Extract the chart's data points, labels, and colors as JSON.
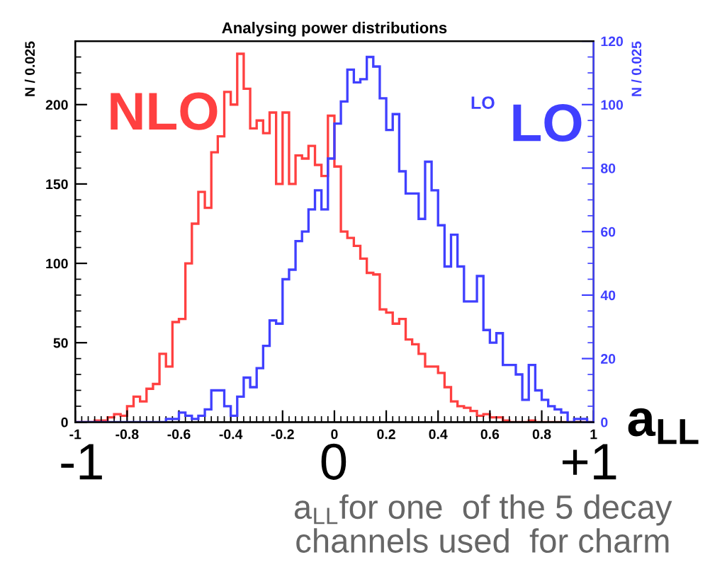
{
  "chart_data": {
    "type": "histogram",
    "title": "Analysing power distributions",
    "ylabel": "N / 0.025",
    "y2label": "N / 0.025",
    "bins": [
      -1,
      -0.975,
      -0.95,
      -0.925,
      -0.9,
      -0.875,
      -0.85,
      -0.825,
      -0.8,
      -0.775,
      -0.75,
      -0.725,
      -0.7,
      -0.675,
      -0.65,
      -0.625,
      -0.6,
      -0.575,
      -0.55,
      -0.525,
      -0.5,
      -0.475,
      -0.45,
      -0.425,
      -0.4,
      -0.375,
      -0.35,
      -0.325,
      -0.3,
      -0.275,
      -0.25,
      -0.225,
      -0.2,
      -0.175,
      -0.15,
      -0.125,
      -0.1,
      -0.075,
      -0.05,
      -0.025,
      0,
      0.025,
      0.05,
      0.075,
      0.1,
      0.125,
      0.15,
      0.175,
      0.2,
      0.225,
      0.25,
      0.275,
      0.3,
      0.325,
      0.35,
      0.375,
      0.4,
      0.425,
      0.45,
      0.475,
      0.5,
      0.525,
      0.55,
      0.575,
      0.6,
      0.625,
      0.65,
      0.675,
      0.7,
      0.725,
      0.75,
      0.775,
      0.8,
      0.825,
      0.85,
      0.875,
      0.9,
      0.925,
      0.95,
      0.975,
      1
    ],
    "series": [
      {
        "name": "NLO",
        "color": "#ff4040",
        "values": [
          0,
          0,
          0,
          1,
          1,
          3,
          5,
          4,
          10,
          16,
          13,
          21,
          24,
          43,
          35,
          63,
          65,
          100,
          125,
          145,
          135,
          170,
          180,
          208,
          200,
          232,
          210,
          185,
          190,
          182,
          195,
          150,
          195,
          150,
          168,
          166,
          174,
          162,
          155,
          193,
          161,
          120,
          116,
          111,
          103,
          94,
          93,
          71,
          69,
          62,
          65,
          52,
          49,
          43,
          35,
          35,
          31,
          22,
          13,
          10,
          9,
          7,
          4,
          5,
          3,
          3,
          1,
          0,
          0,
          0,
          1,
          0,
          0,
          0,
          0,
          0,
          0,
          0,
          0,
          0
        ]
      },
      {
        "name": "LO",
        "color": "#4040ff",
        "axis": "y2",
        "values": [
          0,
          0,
          0,
          0,
          0,
          0,
          0,
          0,
          0,
          0,
          0,
          0,
          0,
          0,
          1,
          1,
          3,
          2,
          1,
          2,
          4,
          10,
          10,
          5,
          2,
          8,
          14,
          11,
          17,
          24,
          32,
          31,
          45,
          48,
          57,
          60,
          67,
          73,
          67,
          83,
          94,
          101,
          111,
          107,
          108,
          115,
          112,
          102,
          92,
          97,
          79,
          72,
          72,
          64,
          82,
          73,
          62,
          49,
          59,
          49,
          38,
          38,
          46,
          29,
          25,
          28,
          18,
          18,
          15,
          7,
          18,
          10,
          7,
          5,
          4,
          3,
          0,
          1,
          1,
          0
        ]
      }
    ],
    "xlim": [
      -1,
      1
    ],
    "xticks": [
      -1,
      -0.8,
      -0.6,
      -0.4,
      -0.2,
      0,
      0.2,
      0.4,
      0.6,
      0.8,
      1
    ],
    "ylim": [
      0,
      240
    ],
    "yticks": [
      0,
      50,
      100,
      150,
      200
    ],
    "y2lim": [
      0,
      120
    ],
    "y2ticks": [
      0,
      20,
      40,
      60,
      80,
      100,
      120
    ],
    "legend": false,
    "grid": false,
    "annotations": [
      "LO",
      "-1",
      "0",
      "+1",
      "a$_{LL}$",
      "a$_{LL}$for one  of the 5 decay channels used  for charm"
    ]
  }
}
